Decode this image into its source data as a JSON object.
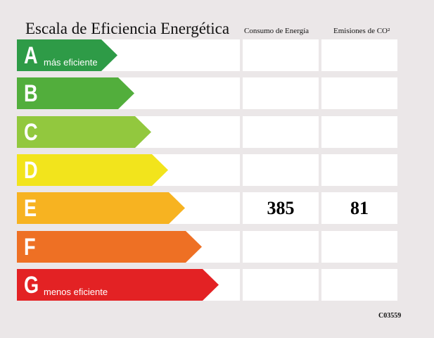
{
  "title": "Escala de Eficiencia Energética",
  "columns": {
    "consumo": "Consumo de Energía",
    "emisiones": "Emisiones de CO²"
  },
  "ratings": [
    {
      "letter": "A",
      "subtitle": "más eficiente",
      "color": "#2e9b47",
      "consumo": "",
      "emisiones": ""
    },
    {
      "letter": "B",
      "subtitle": "",
      "color": "#52ae3c",
      "consumo": "",
      "emisiones": ""
    },
    {
      "letter": "C",
      "subtitle": "",
      "color": "#92c83e",
      "consumo": "",
      "emisiones": ""
    },
    {
      "letter": "D",
      "subtitle": "",
      "color": "#f2e41c",
      "consumo": "",
      "emisiones": ""
    },
    {
      "letter": "E",
      "subtitle": "",
      "color": "#f7b321",
      "consumo": "385",
      "emisiones": "81"
    },
    {
      "letter": "F",
      "subtitle": "",
      "color": "#ee7024",
      "consumo": "",
      "emisiones": ""
    },
    {
      "letter": "G",
      "subtitle": "menos eficiente",
      "color": "#e32224",
      "consumo": "",
      "emisiones": ""
    }
  ],
  "code": "C03559"
}
